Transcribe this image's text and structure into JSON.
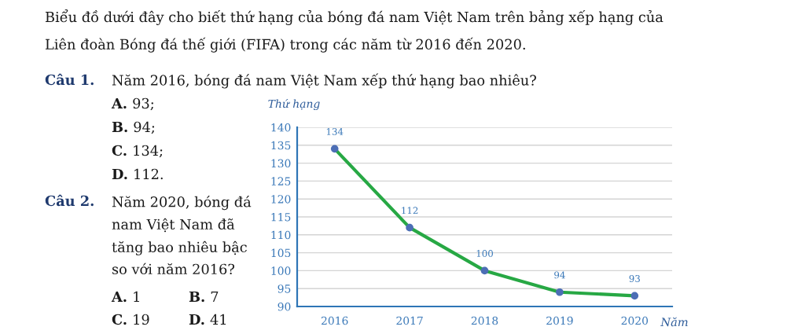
{
  "chart_data": {
    "type": "line",
    "title": "Biểu đồ dưới đây cho biết thứ hạng của bóng đá nam Việt Nam trên bảng xếp hạng của Liên đoàn Bóng đá thế giới (FIFA) trong các năm từ 2016 đến 2020.",
    "xlabel": "Năm",
    "ylabel": "Thứ hạng",
    "categories": [
      "2016",
      "2017",
      "2018",
      "2019",
      "2020"
    ],
    "series": [
      {
        "color": "#27a844",
        "colors": [
          "#4c6eb5",
          "#4c6eb5",
          "#4c6eb5",
          "#4c6eb5",
          "#4c6eb5"
        ],
        "values": [
          134,
          112,
          100,
          94,
          93
        ]
      }
    ],
    "ylim": [
      90,
      140
    ],
    "yticks": [
      90,
      95,
      100,
      105,
      110,
      115,
      120,
      125,
      130,
      135,
      140
    ],
    "grid": "y",
    "marker": "circle",
    "line_style": "solid",
    "data_labels": true,
    "annotations": [
      "Câu 1.",
      "Năm 2016, bóng đá nam Việt Nam xếp thứ hạng bao nhiêu?",
      "A. 93;",
      "B. 94;",
      "C. 134;",
      "D. 112.",
      "Câu 2.",
      "Năm 2020, bóng đá nam Việt Nam đã tăng bao nhiêu bậc so với năm 2016?",
      "A. 1",
      "B. 7",
      "C. 19",
      "D. 41"
    ]
  }
}
